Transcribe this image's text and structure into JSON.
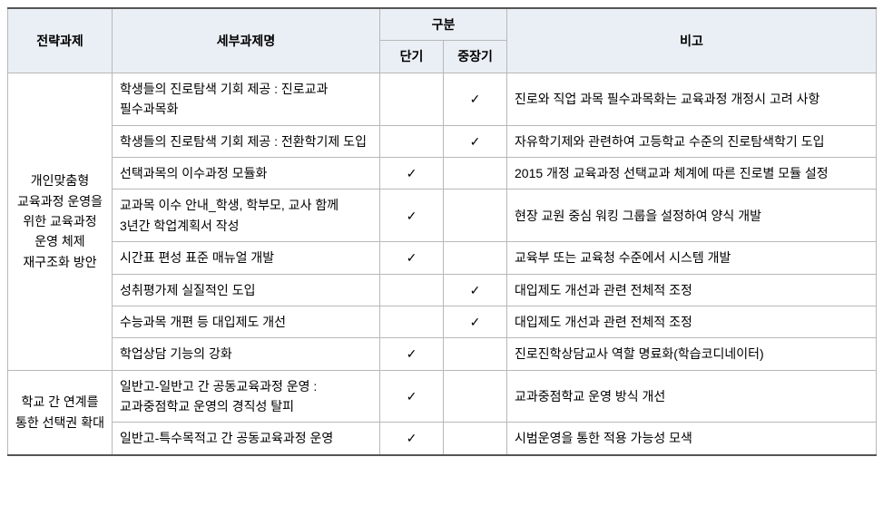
{
  "table": {
    "headers": {
      "strategic": "전략과제",
      "detail": "세부과제명",
      "division": "구분",
      "shortTerm": "단기",
      "midLongTerm": "중장기",
      "notes": "비고"
    },
    "checkmark": "✓",
    "colors": {
      "headerBg": "#eaeff5",
      "border": "#b8b8b8",
      "outerBorder": "#555555",
      "background": "#ffffff"
    },
    "fontSizePt": 11,
    "groups": [
      {
        "strategic": "개인맞춤형 교육과정 운영을 위한 교육과정 운영 체제 재구조화 방안",
        "rows": [
          {
            "detail": "학생들의 진로탐색 기회 제공 : 진로교과 필수과목화",
            "shortTerm": false,
            "midLongTerm": true,
            "notes": "진로와 직업 과목 필수과목화는 교육과정 개정시 고려 사항"
          },
          {
            "detail": "학생들의 진로탐색 기회 제공 : 전환학기제 도입",
            "shortTerm": false,
            "midLongTerm": true,
            "notes": "자유학기제와 관련하여 고등학교 수준의 진로탐색학기 도입"
          },
          {
            "detail": "선택과목의 이수과정 모듈화",
            "shortTerm": true,
            "midLongTerm": false,
            "notes": "2015 개정 교육과정 선택교과 체계에 따른 진로별 모듈 설정"
          },
          {
            "detail": "교과목 이수 안내_학생, 학부모, 교사 함께 3년간 학업계획서 작성",
            "shortTerm": true,
            "midLongTerm": false,
            "notes": "현장 교원 중심 워킹 그룹을 설정하여 양식 개발"
          },
          {
            "detail": "시간표 편성 표준 매뉴얼 개발",
            "shortTerm": true,
            "midLongTerm": false,
            "notes": "교육부 또는 교육청 수준에서 시스템 개발"
          },
          {
            "detail": "성취평가제 실질적인 도입",
            "shortTerm": false,
            "midLongTerm": true,
            "notes": "대입제도 개선과 관련 전체적 조정"
          },
          {
            "detail": "수능과목 개편 등 대입제도 개선",
            "shortTerm": false,
            "midLongTerm": true,
            "notes": "대입제도 개선과 관련 전체적 조정"
          },
          {
            "detail": "학업상담 기능의 강화",
            "shortTerm": true,
            "midLongTerm": false,
            "notes": "진로진학상담교사 역할 명료화(학습코디네이터)"
          }
        ]
      },
      {
        "strategic": "학교 간 연계를 통한 선택권 확대",
        "rows": [
          {
            "detail": "일반고-일반고 간 공동교육과정 운영 : 교과중점학교 운영의 경직성 탈피",
            "shortTerm": true,
            "midLongTerm": false,
            "notes": "교과중점학교 운영 방식 개선"
          },
          {
            "detail": "일반고-특수목적고 간 공동교육과정 운영",
            "shortTerm": true,
            "midLongTerm": false,
            "notes": "시범운영을 통한 적용 가능성 모색"
          }
        ]
      }
    ]
  }
}
